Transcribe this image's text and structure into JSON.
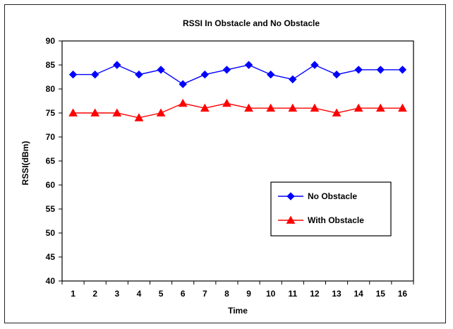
{
  "chart_data": {
    "type": "line",
    "title": "RSSI In Obstacle and No Obstacle",
    "xlabel": "Time",
    "ylabel": "RSSI(dBm)",
    "categories": [
      "1",
      "2",
      "3",
      "4",
      "5",
      "6",
      "7",
      "8",
      "9",
      "10",
      "11",
      "12",
      "13",
      "14",
      "15",
      "16"
    ],
    "ylim": [
      40,
      90
    ],
    "yticks": [
      40,
      45,
      50,
      55,
      60,
      65,
      70,
      75,
      80,
      85,
      90
    ],
    "grid": false,
    "legend_position": "right",
    "series": [
      {
        "name": "No Obstacle",
        "color": "#0000ff",
        "marker": "diamond",
        "values": [
          83,
          83,
          85,
          83,
          84,
          81,
          83,
          84,
          85,
          83,
          82,
          85,
          83,
          84,
          84,
          84
        ]
      },
      {
        "name": "With Obstacle",
        "color": "#ff0000",
        "marker": "triangle",
        "values": [
          75,
          75,
          75,
          74,
          75,
          77,
          76,
          77,
          76,
          76,
          76,
          76,
          75,
          76,
          76,
          76
        ]
      }
    ]
  }
}
